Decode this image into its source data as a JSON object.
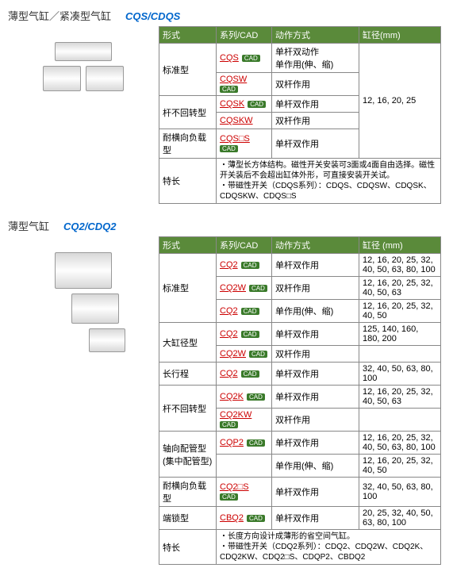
{
  "sections": [
    {
      "title_jp": "薄型气缸／紧凑型气缸",
      "title_code": "CQS/CDQS",
      "headers": [
        "形式",
        "系列/CAD",
        "动作方式",
        "缸径(mm)"
      ],
      "rows": [
        {
          "type": "标准型",
          "type_rowspan": 2,
          "series": "CQS",
          "cad": true,
          "action": "单杆双动作\n单作用(伸、缩)",
          "bore": "12, 16, 20, 25",
          "bore_rowspan": 5
        },
        {
          "series": "CQSW",
          "cad": true,
          "action": "双杆作用"
        },
        {
          "type": "杆不回转型",
          "type_rowspan": 2,
          "series": "CQSK",
          "cad": true,
          "action": "单杆双作用"
        },
        {
          "series": "CQSKW",
          "cad": false,
          "action": "双杆作用"
        },
        {
          "type": "耐横向负载型",
          "series": "CQS□S",
          "cad": true,
          "action": "单杆双作用"
        }
      ],
      "feature_label": "特长",
      "feature_text": "・薄型长方体结构。磁性开关安装可3面或4面自由选择。磁性开关装后不会超出缸体外形，可直接安装开关试。\n・带磁性开关（CDQS系列）：CDQS、CDQSW、CDQSK、CDQSKW、CDQS□S"
    },
    {
      "title_jp": "薄型气缸",
      "title_code": "CQ2/CDQ2",
      "headers": [
        "形式",
        "系列/CAD",
        "动作方式",
        "缸径 (mm)"
      ],
      "rows": [
        {
          "type": "标准型",
          "type_rowspan": 3,
          "series": "CQ2",
          "cad": true,
          "action": "单杆双作用",
          "bore": "12, 16, 20, 25, 32, 40, 50, 63, 80, 100"
        },
        {
          "series": "CQ2W",
          "cad": true,
          "action": "双杆作用",
          "bore": "12, 16, 20, 25, 32, 40, 50, 63"
        },
        {
          "series": "CQ2",
          "cad": true,
          "action": "单作用(伸、缩)",
          "bore": "12, 16, 20, 25, 32, 40, 50"
        },
        {
          "type": "大缸径型",
          "type_rowspan": 2,
          "series": "CQ2",
          "cad": true,
          "action": "单杆双作用",
          "bore": "125, 140, 160, 180, 200"
        },
        {
          "series": "CQ2W",
          "cad": true,
          "action": "双杆作用"
        },
        {
          "type": "长行程",
          "series": "CQ2",
          "cad": true,
          "action": "单杆双作用",
          "bore": "32, 40, 50, 63, 80, 100"
        },
        {
          "type": "杆不回转型",
          "type_rowspan": 2,
          "series": "CQ2K",
          "cad": true,
          "action": "单杆双作用",
          "bore": "12, 16, 20, 25, 32, 40, 50, 63"
        },
        {
          "series": "CQ2KW",
          "cad": true,
          "action": "双杆作用"
        },
        {
          "type": "轴向配管型\n(集中配管型)",
          "type_rowspan": 2,
          "series": "CQP2",
          "cad": true,
          "action": "单杆双作用",
          "bore": "12, 16, 20, 25, 32, 40, 50, 63, 80, 100"
        },
        {
          "series": null,
          "action": "单作用(伸、缩)",
          "bore": "12, 16, 20, 25, 32, 40, 50"
        },
        {
          "type": "耐横向负载型",
          "series": "CQ2□S",
          "cad": true,
          "action": "单杆双作用",
          "bore": "32, 40, 50, 63, 80, 100"
        },
        {
          "type": "端锁型",
          "series": "CBQ2",
          "cad": true,
          "action": "单杆双作用",
          "bore": "20, 25, 32, 40, 50, 63, 80, 100"
        }
      ],
      "feature_label": "特长",
      "feature_text": "・长度方向设计成薄形的省空间气缸。\n・带磁性开关（CDQ2系列）：CDQ2、CDQ2W、CDQ2K、CDQ2KW、CDQ2□S、CDQP2、CBDQ2"
    }
  ]
}
